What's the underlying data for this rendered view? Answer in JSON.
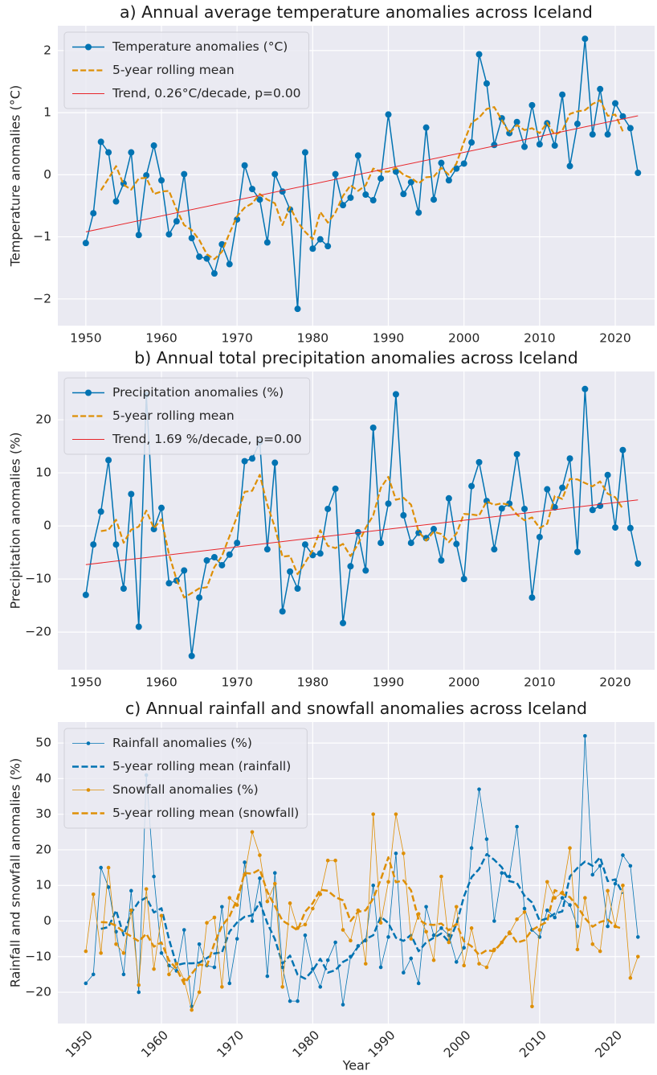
{
  "chart_data": [
    {
      "type": "line",
      "title": "a) Annual average temperature anomalies across Iceland",
      "y_label": "Temperature anomalies (°C)",
      "x": [
        1950,
        1951,
        1952,
        1953,
        1954,
        1955,
        1956,
        1957,
        1958,
        1959,
        1960,
        1961,
        1962,
        1963,
        1964,
        1965,
        1966,
        1967,
        1968,
        1969,
        1970,
        1971,
        1972,
        1973,
        1974,
        1975,
        1976,
        1977,
        1978,
        1979,
        1980,
        1981,
        1982,
        1983,
        1984,
        1985,
        1986,
        1987,
        1988,
        1989,
        1990,
        1991,
        1992,
        1993,
        1994,
        1995,
        1996,
        1997,
        1998,
        1999,
        2000,
        2001,
        2002,
        2003,
        2004,
        2005,
        2006,
        2007,
        2008,
        2009,
        2010,
        2011,
        2012,
        2013,
        2014,
        2015,
        2016,
        2017,
        2018,
        2019,
        2020,
        2021,
        2022,
        2023
      ],
      "xlim": [
        1946.3,
        2025.2
      ],
      "xticks": [
        1950,
        1960,
        1970,
        1980,
        1990,
        2000,
        2010,
        2020
      ],
      "ylim": [
        -2.43,
        2.4
      ],
      "yticks": [
        {
          "value": -2,
          "label": "−2"
        },
        {
          "value": -1,
          "label": "−1"
        },
        0,
        1,
        2
      ],
      "grid": true,
      "legend": "upper left",
      "series": [
        {
          "name": "Temperature anomalies (°C)",
          "color": "#0173b2",
          "linestyle": "solid",
          "linewidth": 1.5,
          "marker": true,
          "marker_size": 4,
          "values": [
            -1.1,
            -0.62,
            0.53,
            0.36,
            -0.43,
            -0.14,
            0.36,
            -0.97,
            -0.01,
            0.47,
            -0.09,
            -0.96,
            -0.75,
            0.01,
            -1.02,
            -1.32,
            -1.35,
            -1.59,
            -1.12,
            -1.44,
            -0.72,
            0.15,
            -0.23,
            -0.4,
            -1.09,
            0.01,
            -0.27,
            -0.56,
            -2.16,
            0.36,
            -1.19,
            -1.04,
            -1.15,
            0.01,
            -0.49,
            -0.37,
            0.31,
            -0.32,
            -0.41,
            -0.06,
            0.97,
            0.05,
            -0.31,
            -0.12,
            -0.61,
            0.76,
            -0.4,
            0.19,
            -0.09,
            0.1,
            0.18,
            0.52,
            1.94,
            1.47,
            0.48,
            0.91,
            0.67,
            0.85,
            0.45,
            1.12,
            0.49,
            0.83,
            0.47,
            1.29,
            0.14,
            0.82,
            2.19,
            0.65,
            1.38,
            0.65,
            1.15,
            0.94,
            0.75,
            0.03
          ]
        },
        {
          "name": "5-year rolling mean",
          "color": "#de8f05",
          "linestyle": "dashed",
          "linewidth": 2.2,
          "marker": false,
          "values": [
            null,
            null,
            -0.25,
            -0.06,
            0.14,
            -0.16,
            -0.24,
            -0.06,
            -0.05,
            -0.31,
            -0.27,
            -0.26,
            -0.56,
            -0.81,
            -0.89,
            -1.05,
            -1.28,
            -1.36,
            -1.24,
            -0.94,
            -0.67,
            -0.53,
            -0.46,
            -0.31,
            -0.4,
            -0.46,
            -0.81,
            -0.52,
            -0.76,
            -0.92,
            -1.04,
            -0.6,
            -0.77,
            -0.61,
            -0.34,
            -0.17,
            -0.26,
            -0.17,
            0.1,
            0.05,
            0.05,
            0.11,
            0,
            -0.05,
            -0.14,
            -0.04,
            -0.03,
            0.11,
            0,
            0.18,
            0.53,
            0.84,
            0.92,
            1.06,
            1.09,
            0.88,
            0.67,
            0.8,
            0.72,
            0.75,
            0.67,
            0.84,
            0.64,
            0.71,
            0.98,
            1.02,
            1.04,
            1.14,
            1.2,
            0.95,
            0.97,
            0.7,
            null,
            null
          ]
        },
        {
          "name": "Trend, 0.26°C/decade, p=0.00",
          "color": "#e8252a",
          "linestyle": "solid",
          "linewidth": 1,
          "marker": false,
          "x": [
            1950,
            2023
          ],
          "values": [
            -0.92,
            0.95
          ]
        }
      ]
    },
    {
      "type": "line",
      "title": "b) Annual total precipitation anomalies across Iceland",
      "y_label": "Precipitation anomalies (%)",
      "x": [
        1950,
        1951,
        1952,
        1953,
        1954,
        1955,
        1956,
        1957,
        1958,
        1959,
        1960,
        1961,
        1962,
        1963,
        1964,
        1965,
        1966,
        1967,
        1968,
        1969,
        1970,
        1971,
        1972,
        1973,
        1974,
        1975,
        1976,
        1977,
        1978,
        1979,
        1980,
        1981,
        1982,
        1983,
        1984,
        1985,
        1986,
        1987,
        1988,
        1989,
        1990,
        1991,
        1992,
        1993,
        1994,
        1995,
        1996,
        1997,
        1998,
        1999,
        2000,
        2001,
        2002,
        2003,
        2004,
        2005,
        2006,
        2007,
        2008,
        2009,
        2010,
        2011,
        2012,
        2013,
        2014,
        2015,
        2016,
        2017,
        2018,
        2019,
        2020,
        2021,
        2022,
        2023
      ],
      "xlim": [
        1946.3,
        2025.2
      ],
      "xticks": [
        1950,
        1960,
        1970,
        1980,
        1990,
        2000,
        2010,
        2020
      ],
      "ylim": [
        -27.1,
        29.1
      ],
      "yticks": [
        {
          "value": -20,
          "label": "−20"
        },
        {
          "value": -10,
          "label": "−10"
        },
        0,
        10,
        20
      ],
      "grid": true,
      "legend": "upper left",
      "series": [
        {
          "name": "Precipitation anomalies (%)",
          "color": "#0173b2",
          "linestyle": "solid",
          "linewidth": 1.5,
          "marker": true,
          "marker_size": 4,
          "values": [
            -13.0,
            -3.5,
            2.7,
            12.4,
            -3.5,
            -11.8,
            6.0,
            -19.0,
            24.7,
            -0.6,
            3.4,
            -10.8,
            -10.3,
            -8.4,
            -24.5,
            -13.5,
            -6.5,
            -5.9,
            -7.4,
            -5.4,
            -3.2,
            12.2,
            12.7,
            15.8,
            -4.4,
            11.9,
            -16.1,
            -8.6,
            -11.8,
            -3.5,
            -5.5,
            -5.2,
            3.2,
            7.0,
            -18.3,
            -7.6,
            -1.2,
            -8.4,
            18.5,
            -3.2,
            4.2,
            24.8,
            2.0,
            -3.2,
            -1.3,
            -2.3,
            -0.6,
            -6.5,
            5.2,
            -3.4,
            -10.0,
            7.5,
            12.0,
            4.7,
            -4.4,
            3.3,
            4.2,
            13.5,
            3.2,
            -13.5,
            -2.1,
            6.9,
            3.5,
            7.2,
            12.7,
            -4.9,
            25.8,
            3.0,
            3.8,
            9.6,
            -0.3,
            14.3,
            -0.4,
            -7.1
          ]
        },
        {
          "name": "5-year rolling mean",
          "color": "#de8f05",
          "linestyle": "dashed",
          "linewidth": 2.2,
          "marker": false,
          "values": [
            null,
            null,
            -0.98,
            -0.74,
            1.16,
            -3.18,
            -0.72,
            -0.14,
            2.9,
            -0.46,
            1.28,
            -5.34,
            -10.12,
            -13.5,
            -12.64,
            -11.76,
            -11.56,
            -7.74,
            -5.68,
            -1.94,
            1.78,
            6.42,
            6.62,
            9.64,
            3.98,
            -0.28,
            -5.8,
            -5.62,
            -9.1,
            -6.92,
            -4.56,
            -0.8,
            -3.76,
            -4.18,
            -3.38,
            -5.7,
            -3.4,
            -0.38,
            1.98,
            7.18,
            9.26,
            4.92,
            5.3,
            4.0,
            -1.08,
            -2.78,
            -1.1,
            -1.52,
            -3.06,
            -1.44,
            2.26,
            2.16,
            1.96,
            4.62,
            3.96,
            4.26,
            3.96,
            2.14,
            1.06,
            1.6,
            -0.4,
            0.4,
            5.64,
            5.08,
            8.86,
            8.76,
            8.08,
            7.46,
            8.38,
            6.08,
            5.4,
            3.22,
            null,
            null
          ]
        },
        {
          "name": "Trend, 1.69 %/decade, p=0.00",
          "color": "#e8252a",
          "linestyle": "solid",
          "linewidth": 1,
          "marker": false,
          "x": [
            1950,
            2023
          ],
          "values": [
            -7.3,
            4.9
          ]
        }
      ]
    },
    {
      "type": "line",
      "title": "c) Annual rainfall and snowfall anomalies across Iceland",
      "y_label": "Rainfall and snowfall anomalies (%)",
      "x_label": "Year",
      "x": [
        1950,
        1951,
        1952,
        1953,
        1954,
        1955,
        1956,
        1957,
        1958,
        1959,
        1960,
        1961,
        1962,
        1963,
        1964,
        1965,
        1966,
        1967,
        1968,
        1969,
        1970,
        1971,
        1972,
        1973,
        1974,
        1975,
        1976,
        1977,
        1978,
        1979,
        1980,
        1981,
        1982,
        1983,
        1984,
        1985,
        1986,
        1987,
        1988,
        1989,
        1990,
        1991,
        1992,
        1993,
        1994,
        1995,
        1996,
        1997,
        1998,
        1999,
        2000,
        2001,
        2002,
        2003,
        2004,
        2005,
        2006,
        2007,
        2008,
        2009,
        2010,
        2011,
        2012,
        2013,
        2014,
        2015,
        2016,
        2017,
        2018,
        2019,
        2020,
        2021,
        2022,
        2023
      ],
      "xlim": [
        1946.3,
        2025.2
      ],
      "xticks": [
        1950,
        1960,
        1970,
        1980,
        1990,
        2000,
        2010,
        2020
      ],
      "xtick_rotation": 45,
      "ylim": [
        -28.8,
        55.9
      ],
      "yticks": [
        {
          "value": -20,
          "label": "−20"
        },
        {
          "value": -10,
          "label": "−10"
        },
        0,
        10,
        20,
        30,
        40,
        50
      ],
      "grid": true,
      "legend": "upper left",
      "series": [
        {
          "name": "Rainfall anomalies (%)",
          "color": "#0173b2",
          "linestyle": "solid",
          "linewidth": 0.8,
          "marker": true,
          "marker_size": 2.3,
          "values": [
            -17.5,
            -15,
            15,
            9.5,
            -3,
            -15,
            8.5,
            -20,
            41,
            12.5,
            -9,
            -12.5,
            -14,
            -2.5,
            -24,
            -6.5,
            -12.5,
            -13,
            4,
            -17.5,
            -5,
            16.5,
            0,
            12,
            -15.5,
            13.5,
            -13,
            -22.5,
            -22.5,
            -4,
            -13.5,
            -18.5,
            -11,
            -6,
            -23.5,
            -10,
            -7,
            -5.5,
            10,
            -13,
            -4.5,
            19,
            -14.5,
            -10.5,
            -17.5,
            4,
            -4,
            -2,
            -4,
            -11.5,
            -7.5,
            20.5,
            37,
            23,
            0,
            13.5,
            12.5,
            26.5,
            3.5,
            -2.5,
            -4.5,
            3,
            1,
            6.5,
            4.5,
            -1.5,
            52,
            13,
            15.5,
            -1.5,
            10.5,
            18.5,
            15.5,
            -4.5
          ]
        },
        {
          "name": "5-year rolling mean (rainfall)",
          "color": "#0173b2",
          "linestyle": "dashed",
          "linewidth": 2.5,
          "marker": false,
          "values": [
            null,
            null,
            -2.2,
            -1.7,
            3.0,
            -4.0,
            2.3,
            5.4,
            6.6,
            2.4,
            3.6,
            -5.1,
            -12.4,
            -11.9,
            -11.9,
            -11.7,
            -10.4,
            -9.1,
            -8.8,
            -3.0,
            -0.4,
            1.2,
            1.6,
            5.3,
            -0.6,
            -5.1,
            -12.0,
            -9.7,
            -15.1,
            -16.2,
            -13.9,
            -10.6,
            -14.5,
            -13.8,
            -11.5,
            -10.4,
            -7.2,
            -5.1,
            -4.0,
            1.2,
            -0.6,
            -4.7,
            -5.6,
            -3.9,
            -8.5,
            -6.0,
            -4.7,
            -3.5,
            -5.8,
            -0.9,
            6.9,
            12.3,
            14.6,
            18.8,
            17.2,
            15.1,
            11.2,
            10.7,
            7.1,
            5.2,
            0.1,
            0.7,
            2.1,
            2.7,
            12.5,
            14.9,
            16.7,
            15.5,
            17.9,
            11.2,
            11.7,
            7.7,
            null,
            null
          ]
        },
        {
          "name": "Snowfall anomalies (%)",
          "color": "#de8f05",
          "linestyle": "solid",
          "linewidth": 0.8,
          "marker": true,
          "marker_size": 2.3,
          "values": [
            -8.5,
            7.5,
            -9,
            15,
            -6.5,
            -9,
            3,
            -18,
            9,
            -13.5,
            1.5,
            -15,
            -12,
            -16.5,
            -25,
            -20,
            -0.5,
            1,
            -18.5,
            6.5,
            4.5,
            13,
            25,
            18.5,
            5.5,
            10.5,
            -18.5,
            5,
            -2,
            -1,
            3.5,
            7.5,
            17,
            17,
            -2.5,
            -5.5,
            3,
            -12,
            30,
            -0.5,
            11,
            30,
            19,
            -5,
            2,
            -3,
            -11,
            12.5,
            -6,
            4,
            -12.5,
            -2,
            -12,
            -13,
            -8,
            -6,
            -3.5,
            0.5,
            2.5,
            -24,
            -2.5,
            11,
            6.5,
            8,
            20.5,
            -8,
            6.5,
            -6.5,
            -8.5,
            8.5,
            -1.5,
            10,
            -16,
            -10
          ]
        },
        {
          "name": "5-year rolling mean (snowfall)",
          "color": "#de8f05",
          "linestyle": "dashed",
          "linewidth": 2.5,
          "marker": false,
          "values": [
            null,
            null,
            -0.3,
            -0.4,
            -1.3,
            -3.1,
            -4.3,
            -5.7,
            -3.6,
            -7.2,
            -6.0,
            -11.1,
            -13.4,
            -17.7,
            -14.8,
            -12.2,
            -12.6,
            -6.3,
            -1.4,
            1.3,
            6.1,
            13.5,
            13.3,
            14.5,
            8.2,
            4.2,
            0.1,
            -1.2,
            -2.6,
            2.6,
            5.0,
            8.8,
            8.5,
            6.7,
            5.8,
            0,
            2.6,
            3.0,
            6.3,
            11.7,
            17.9,
            10.9,
            11.4,
            8.6,
            0.4,
            -0.9,
            -1.1,
            -0.7,
            -2.6,
            -0.8,
            -5.7,
            -7.1,
            -9.5,
            -8.2,
            -8.5,
            -6.0,
            -2.9,
            -6.1,
            -5.4,
            -2.5,
            -1.3,
            -0.2,
            8.7,
            7.6,
            6.7,
            4.1,
            0.8,
            -1.6,
            -0.3,
            0.4,
            -1.5,
            -2.2,
            null,
            null
          ]
        }
      ]
    }
  ]
}
